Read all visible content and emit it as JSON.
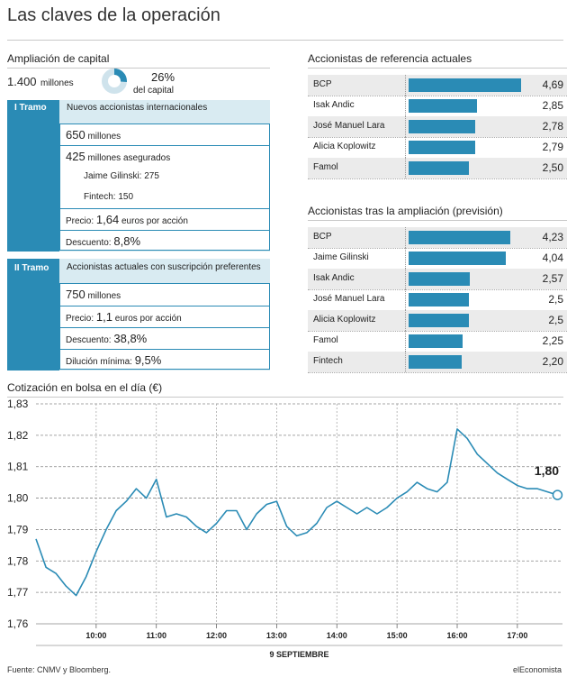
{
  "title": "Las claves de la operación",
  "ampliacion": {
    "title": "Ampliación de capital",
    "amount": "1.400",
    "amount_unit": "millones",
    "percent": "26%",
    "percent_label": "del capital",
    "percent_value": 26
  },
  "tramo1": {
    "label": "I Tramo",
    "heading": "Nuevos accionistas internacionales",
    "rows": [
      {
        "big": "650",
        "small": " millones"
      },
      {
        "big": "425",
        "small": " millones asegurados"
      },
      {
        "sub": "Jaime Gilinski: 275"
      },
      {
        "sub": "Fintech: 150"
      },
      {
        "small": "Precio: ",
        "big": "1,64",
        "small2": " euros por acción"
      },
      {
        "small": "Descuento: ",
        "big": "8,8%"
      }
    ]
  },
  "tramo2": {
    "label": "II Tramo",
    "heading": "Accionistas actuales con suscripción preferentes",
    "rows": [
      {
        "big": "750",
        "small": " millones"
      },
      {
        "small": "Precio: ",
        "big": "1,1",
        "small2": " euros por acción"
      },
      {
        "small": "Descuento: ",
        "big": "38,8%"
      },
      {
        "small": "Dilución mínima: ",
        "big": "9,5%"
      }
    ]
  },
  "chart_data": [
    {
      "type": "bar",
      "title": "Accionistas de referencia actuales",
      "orientation": "horizontal",
      "categories": [
        "BCP",
        "Isak Andic",
        "José Manuel Lara",
        "Alicia Koplowitz",
        "Famol"
      ],
      "values": [
        4.69,
        2.85,
        2.78,
        2.79,
        2.5
      ],
      "value_labels": [
        "4,69",
        "2,85",
        "2,78",
        "2,79",
        "2,50"
      ],
      "color": "#2a8bb5"
    },
    {
      "type": "bar",
      "title": "Accionistas tras la ampliación (previsión)",
      "orientation": "horizontal",
      "categories": [
        "BCP",
        "Jaime Gilinski",
        "Isak Andic",
        "José Manuel Lara",
        "Alicia Koplowitz",
        "Famol",
        "Fintech"
      ],
      "values": [
        4.23,
        4.04,
        2.57,
        2.5,
        2.5,
        2.25,
        2.2
      ],
      "value_labels": [
        "4,23",
        "4,04",
        "2,57",
        "2,5",
        "2,5",
        "2,25",
        "2,20"
      ],
      "color": "#2a8bb5"
    },
    {
      "type": "line",
      "title": "Cotización en bolsa en el día (€)",
      "xlabel": "9 SEPTIEMBRE",
      "ylim": [
        1.76,
        1.83
      ],
      "yticks": [
        1.76,
        1.77,
        1.78,
        1.79,
        1.8,
        1.81,
        1.82,
        1.83
      ],
      "ytick_labels": [
        "1,76",
        "1,77",
        "1,78",
        "1,79",
        "1,80",
        "1,81",
        "1,82",
        "1,83"
      ],
      "xlim": [
        "09:00",
        "17:45"
      ],
      "xticks": [
        "10:00",
        "11:00",
        "12:00",
        "13:00",
        "14:00",
        "15:00",
        "16:00",
        "17:00"
      ],
      "last_value_label": "1,80",
      "color": "#2a8bb5",
      "series": [
        {
          "x": [
            "09:00",
            "09:10",
            "09:20",
            "09:30",
            "09:40",
            "09:50",
            "10:00",
            "10:10",
            "10:20",
            "10:30",
            "10:40",
            "10:50",
            "11:00",
            "11:10",
            "11:20",
            "11:30",
            "11:40",
            "11:50",
            "12:00",
            "12:10",
            "12:20",
            "12:30",
            "12:40",
            "12:50",
            "13:00",
            "13:10",
            "13:20",
            "13:30",
            "13:40",
            "13:50",
            "14:00",
            "14:10",
            "14:20",
            "14:30",
            "14:40",
            "14:50",
            "15:00",
            "15:10",
            "15:20",
            "15:30",
            "15:40",
            "15:50",
            "16:00",
            "16:10",
            "16:20",
            "16:30",
            "16:40",
            "16:50",
            "17:00",
            "17:10",
            "17:20",
            "17:30",
            "17:40"
          ],
          "values": [
            1.787,
            1.778,
            1.776,
            1.772,
            1.769,
            1.775,
            1.783,
            1.79,
            1.796,
            1.799,
            1.803,
            1.8,
            1.806,
            1.794,
            1.795,
            1.794,
            1.791,
            1.789,
            1.792,
            1.796,
            1.796,
            1.79,
            1.795,
            1.798,
            1.799,
            1.791,
            1.788,
            1.789,
            1.792,
            1.797,
            1.799,
            1.797,
            1.795,
            1.797,
            1.795,
            1.797,
            1.8,
            1.802,
            1.805,
            1.803,
            1.802,
            1.805,
            1.822,
            1.819,
            1.814,
            1.811,
            1.808,
            1.806,
            1.804,
            1.803,
            1.803,
            1.802,
            1.801
          ]
        }
      ]
    }
  ],
  "footer": {
    "source": "Fuente: CNMV y Bloomberg.",
    "brand": "elEconomista"
  }
}
